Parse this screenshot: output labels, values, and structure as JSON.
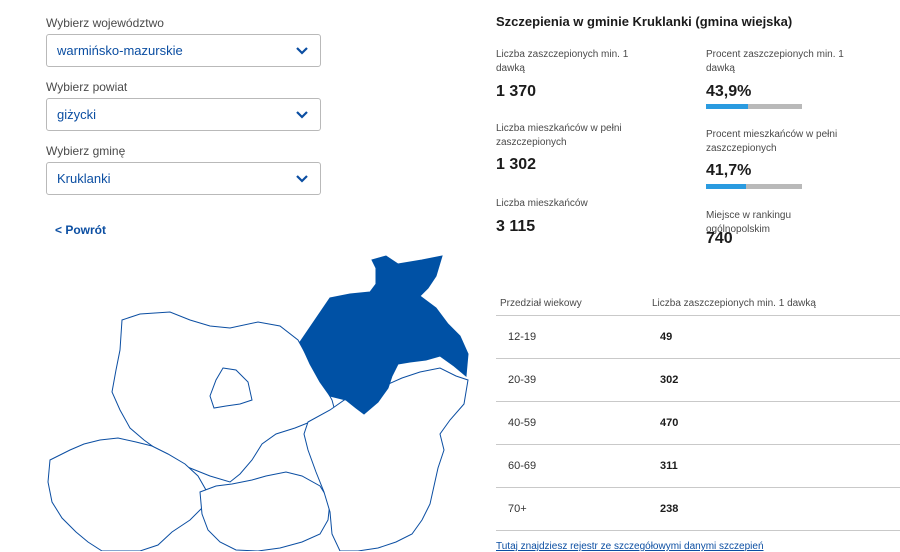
{
  "filters": {
    "voivodeship": {
      "label": "Wybierz województwo",
      "value": "warmińsko-mazurskie"
    },
    "county": {
      "label": "Wybierz powiat",
      "value": "giżycki"
    },
    "commune": {
      "label": "Wybierz gminę",
      "value": "Kruklanki"
    }
  },
  "back_label": "< Powrót",
  "stats": {
    "title": "Szczepienia w gminie Kruklanki (gmina wiejska)",
    "vaccinated_one_dose": {
      "label": "Liczba zaszczepionych min. 1 dawką",
      "value": "1 370"
    },
    "percent_one_dose": {
      "label": "Procent zaszczepionych min. 1 dawką",
      "value": "43,9%",
      "fraction": 0.439
    },
    "fully_vaccinated": {
      "label": "Liczba mieszkańców w pełni zaszczepionych",
      "value": "1 302"
    },
    "percent_fully": {
      "label": "Procent mieszkańców w pełni zaszczepionych",
      "value": "41,7%",
      "fraction": 0.417
    },
    "residents": {
      "label": "Liczba mieszkańców",
      "value": "3 115"
    },
    "ranking": {
      "label": "Miejsce w rankingu ogólnopolskim",
      "value": "740"
    }
  },
  "age_table": {
    "headers": [
      "Przedział wiekowy",
      "Liczba zaszczepionych min. 1 dawką"
    ],
    "rows": [
      {
        "age": "12-19",
        "count": "49"
      },
      {
        "age": "20-39",
        "count": "302"
      },
      {
        "age": "40-59",
        "count": "470"
      },
      {
        "age": "60-69",
        "count": "311"
      },
      {
        "age": "70+",
        "count": "238"
      }
    ]
  },
  "footer_link": "Tutaj znajdziesz rejestr ze szczegółowymi danymi szczepień",
  "colors": {
    "accent": "#0b4ea2",
    "progress_fill": "#2a9be0",
    "map_highlight": "#0051a5"
  }
}
